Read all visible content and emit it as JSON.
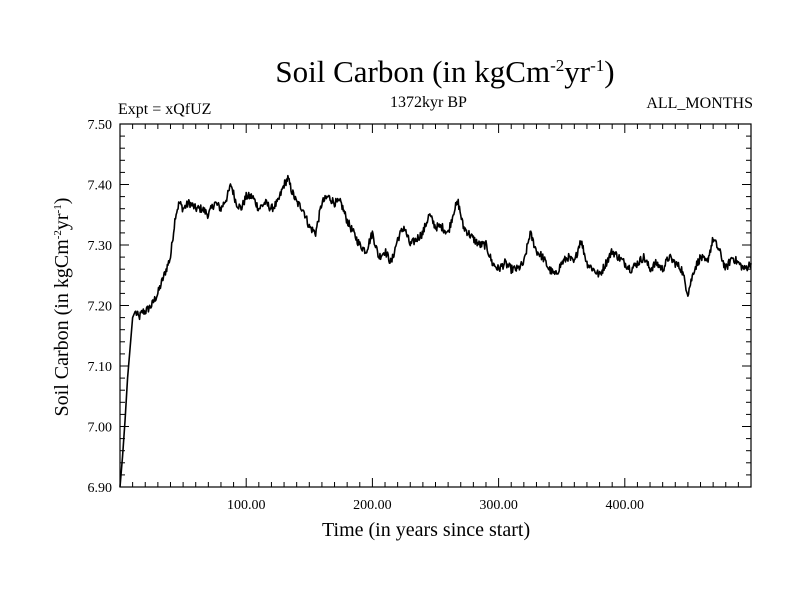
{
  "chart_data": {
    "type": "line",
    "title": "Soil Carbon (in kgCm-2yr-1)",
    "title_parts": {
      "main": "Soil Carbon (in kgCm",
      "sup1": "-2",
      "mid": "yr",
      "sup2": "-1",
      "end": ")"
    },
    "expt_label": "Expt = xQfUZ",
    "period_label": "1372kyr BP",
    "months_label": "ALL_MONTHS",
    "xlabel": "Time (in years since start)",
    "ylabel": "Soil Carbon (in kgCm-2yr-1)",
    "ylabel_parts": {
      "main": "Soil Carbon (in kgCm",
      "sup1": "-2",
      "mid": "yr",
      "sup2": "-1",
      "end": ")"
    },
    "xlim": [
      0,
      500
    ],
    "ylim": [
      6.9,
      7.5
    ],
    "xticks": [
      100,
      200,
      300,
      400
    ],
    "xtick_labels": [
      "100.00",
      "200.00",
      "300.00",
      "400.00"
    ],
    "yticks": [
      6.9,
      7.0,
      7.1,
      7.2,
      7.3,
      7.4,
      7.5
    ],
    "ytick_labels": [
      "6.90",
      "7.00",
      "7.10",
      "7.20",
      "7.30",
      "7.40",
      "7.50"
    ],
    "grid": false,
    "series": [
      {
        "name": "Soil Carbon",
        "x": [
          0,
          2,
          4,
          6,
          8,
          10,
          12,
          15,
          18,
          20,
          25,
          30,
          35,
          40,
          44,
          47,
          50,
          55,
          60,
          65,
          70,
          75,
          80,
          85,
          88,
          92,
          96,
          100,
          105,
          110,
          115,
          120,
          125,
          130,
          133,
          136,
          140,
          145,
          150,
          155,
          160,
          165,
          170,
          175,
          180,
          185,
          190,
          195,
          200,
          205,
          210,
          215,
          220,
          225,
          230,
          235,
          240,
          245,
          250,
          255,
          260,
          265,
          268,
          272,
          276,
          280,
          285,
          290,
          295,
          300,
          305,
          310,
          315,
          320,
          325,
          330,
          335,
          340,
          345,
          350,
          355,
          360,
          365,
          370,
          375,
          380,
          385,
          390,
          395,
          400,
          405,
          410,
          415,
          420,
          425,
          430,
          435,
          440,
          445,
          450,
          455,
          460,
          465,
          470,
          475,
          480,
          485,
          490,
          495,
          500
        ],
        "values": [
          6.9,
          6.95,
          7.01,
          7.08,
          7.13,
          7.18,
          7.19,
          7.18,
          7.19,
          7.19,
          7.2,
          7.22,
          7.25,
          7.28,
          7.35,
          7.37,
          7.36,
          7.37,
          7.36,
          7.36,
          7.35,
          7.37,
          7.36,
          7.38,
          7.4,
          7.37,
          7.36,
          7.38,
          7.38,
          7.36,
          7.37,
          7.36,
          7.37,
          7.4,
          7.41,
          7.39,
          7.37,
          7.36,
          7.33,
          7.32,
          7.37,
          7.38,
          7.37,
          7.37,
          7.34,
          7.32,
          7.3,
          7.29,
          7.32,
          7.28,
          7.29,
          7.27,
          7.31,
          7.33,
          7.3,
          7.31,
          7.32,
          7.35,
          7.33,
          7.33,
          7.32,
          7.36,
          7.37,
          7.33,
          7.32,
          7.31,
          7.3,
          7.3,
          7.27,
          7.26,
          7.27,
          7.26,
          7.26,
          7.27,
          7.32,
          7.29,
          7.28,
          7.26,
          7.25,
          7.27,
          7.28,
          7.27,
          7.31,
          7.27,
          7.26,
          7.25,
          7.27,
          7.29,
          7.28,
          7.27,
          7.26,
          7.27,
          7.28,
          7.26,
          7.27,
          7.26,
          7.28,
          7.27,
          7.26,
          7.22,
          7.26,
          7.28,
          7.27,
          7.31,
          7.29,
          7.26,
          7.28,
          7.27,
          7.26,
          7.27
        ]
      }
    ],
    "line_color": "#000000"
  }
}
